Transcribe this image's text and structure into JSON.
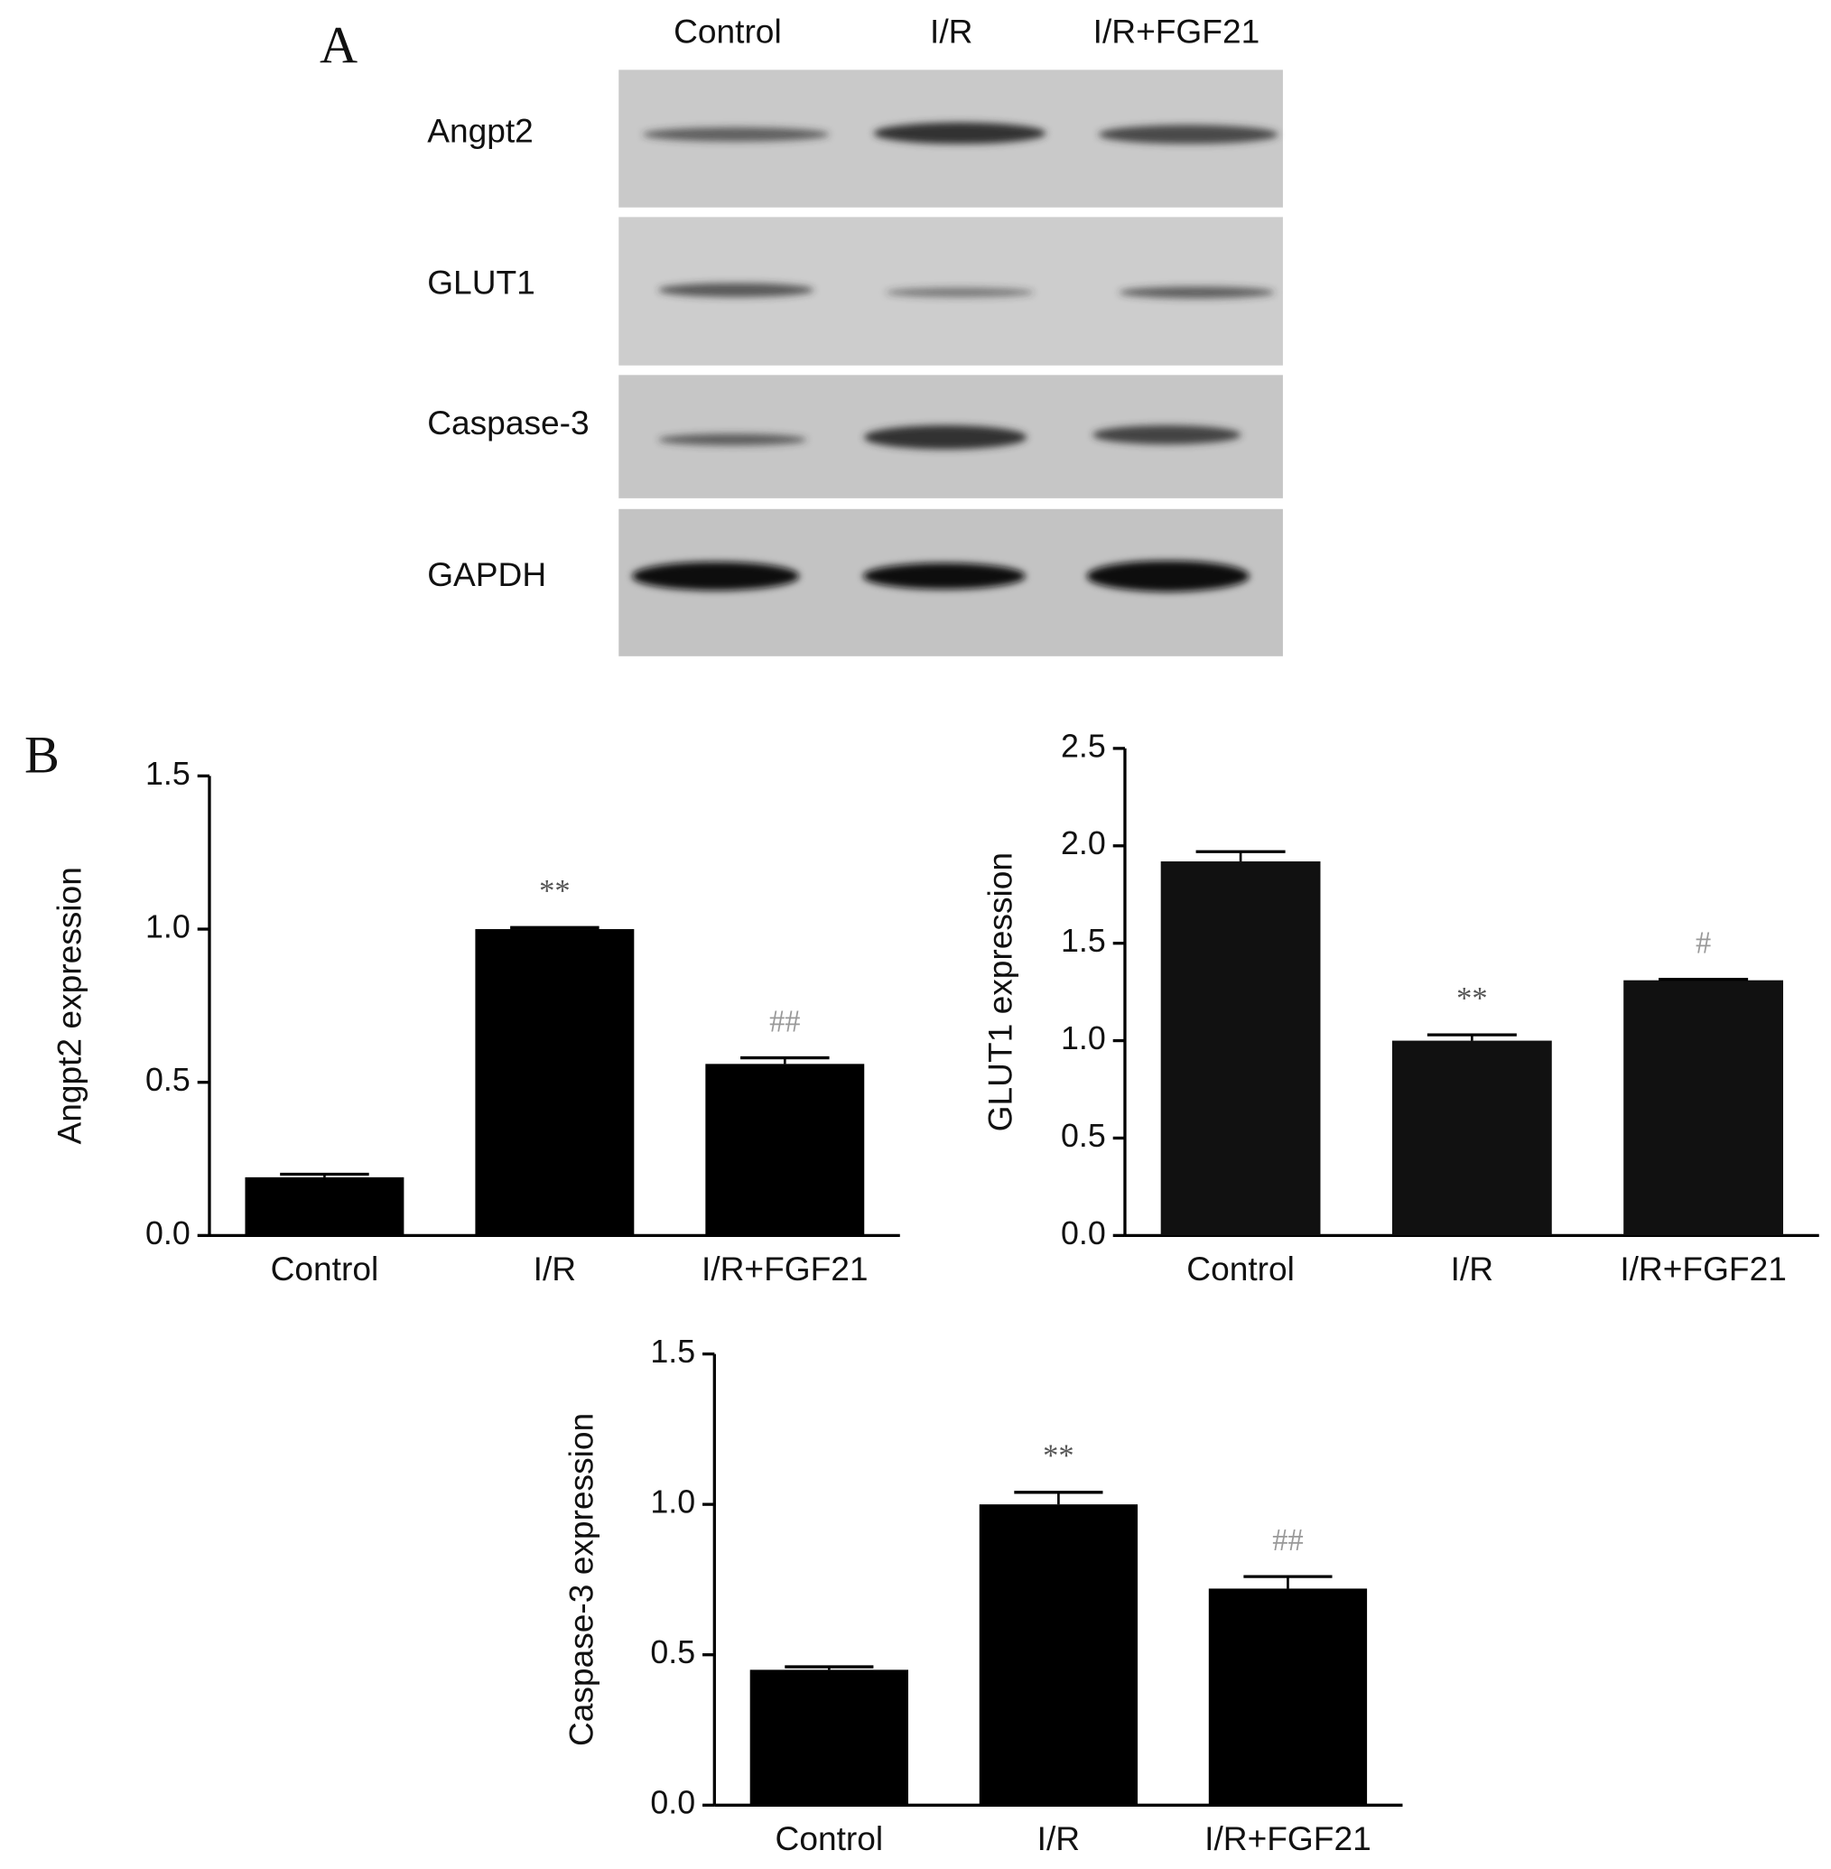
{
  "blot": {
    "label": "A",
    "lanes": [
      "Control",
      "I/R",
      "I/R+FGF21"
    ],
    "bands": [
      "Angpt2",
      "GLUT1",
      "Caspase-3",
      "GAPDH"
    ]
  },
  "panel_b_label": "B",
  "chart_data": [
    {
      "type": "bar",
      "ylabel": "Angpt2 expression",
      "categories": [
        "Control",
        "I/R",
        "I/R+FGF21"
      ],
      "values": [
        0.19,
        1.0,
        0.56
      ],
      "errors": [
        0.01,
        0.005,
        0.02
      ],
      "color": "#000000",
      "value_annotations": [
        null,
        "**",
        "##"
      ],
      "annotation_colors": [
        null,
        "#555555",
        "#999999"
      ],
      "ylim": [
        0,
        1.5
      ],
      "yticks": [
        {
          "value": 0,
          "label": "0.0"
        },
        0.5,
        {
          "value": 1,
          "label": "1.0"
        },
        1.5
      ]
    },
    {
      "type": "bar",
      "ylabel": "GLUT1 expression",
      "categories": [
        "Control",
        "I/R",
        "I/R+FGF21"
      ],
      "values": [
        1.92,
        1.0,
        1.31
      ],
      "errors": [
        0.05,
        0.03,
        0.005
      ],
      "color": "#111111",
      "value_annotations": [
        null,
        "**",
        "#"
      ],
      "annotation_colors": [
        null,
        "#555555",
        "#999999"
      ],
      "ylim": [
        0,
        2.5
      ],
      "yticks": [
        {
          "value": 0,
          "label": "0.0"
        },
        0.5,
        {
          "value": 1,
          "label": "1.0"
        },
        1.5,
        {
          "value": 2,
          "label": "2.0"
        },
        2.5
      ]
    },
    {
      "type": "bar",
      "ylabel": "Caspase-3 expression",
      "categories": [
        "Control",
        "I/R",
        "I/R+FGF21"
      ],
      "values": [
        0.45,
        1.0,
        0.72
      ],
      "errors": [
        0.01,
        0.04,
        0.04
      ],
      "color": "#000000",
      "value_annotations": [
        null,
        "**",
        "##"
      ],
      "annotation_colors": [
        null,
        "#555555",
        "#999999"
      ],
      "ylim": [
        0,
        1.5
      ],
      "yticks": [
        {
          "value": 0,
          "label": "0.0"
        },
        0.5,
        {
          "value": 1,
          "label": "1.0"
        },
        1.5
      ]
    }
  ]
}
